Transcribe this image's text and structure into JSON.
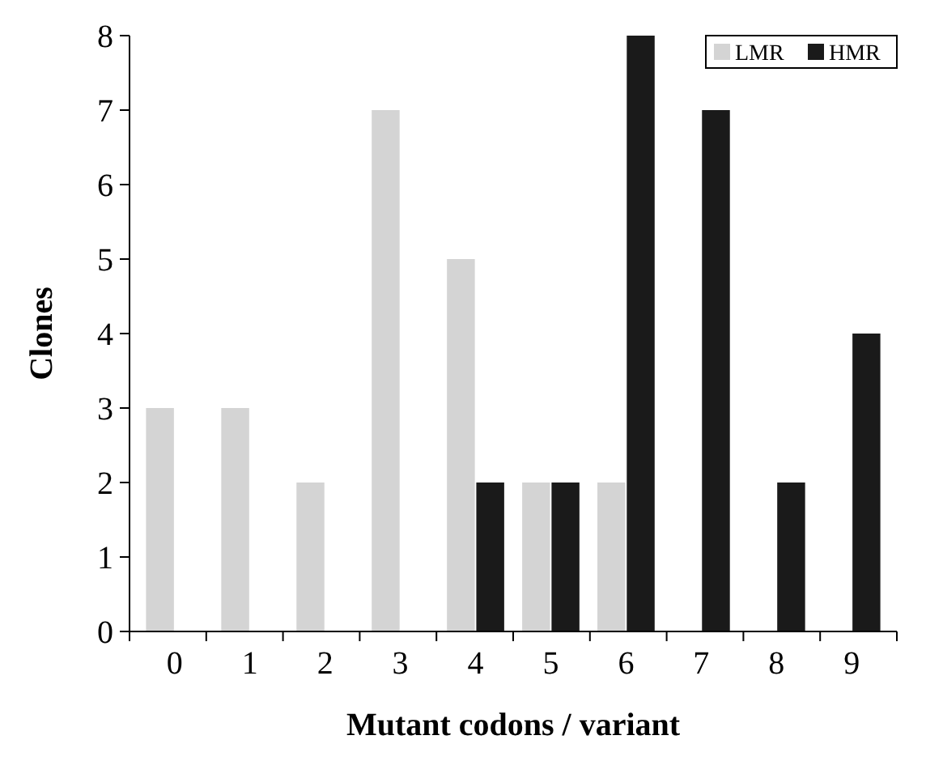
{
  "chart_data": {
    "type": "bar",
    "xlabel": "Mutant codons / variant",
    "ylabel": "Clones",
    "categories": [
      "0",
      "1",
      "2",
      "3",
      "4",
      "5",
      "6",
      "7",
      "8",
      "9"
    ],
    "series": [
      {
        "name": "LMR",
        "color": "#d4d4d4",
        "values": [
          3,
          3,
          2,
          7,
          5,
          2,
          2,
          0,
          0,
          0
        ]
      },
      {
        "name": "HMR",
        "color": "#1a1a1a",
        "values": [
          0,
          0,
          0,
          0,
          2,
          2,
          8,
          7,
          2,
          4
        ]
      }
    ],
    "ylim": [
      0,
      8
    ],
    "yticks": [
      0,
      1,
      2,
      3,
      4,
      5,
      6,
      7,
      8
    ],
    "grid": false,
    "legend": "top right"
  }
}
